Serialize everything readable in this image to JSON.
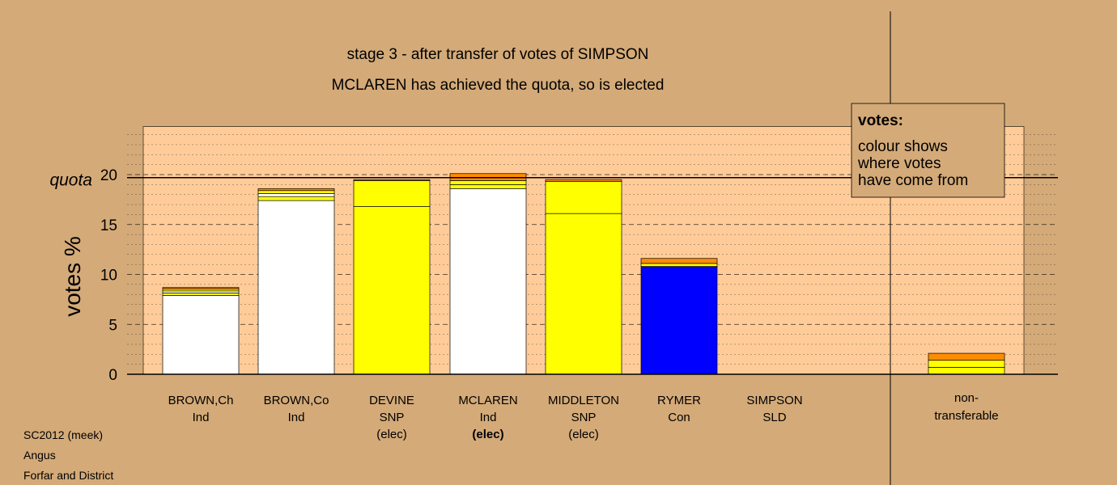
{
  "chart_data": {
    "type": "bar",
    "stacked": true,
    "title": "stage 3 - after transfer of votes of SIMPSON",
    "subtitle": "MCLAREN has achieved the quota, so is elected",
    "ylabel": "votes %",
    "ylim": [
      0,
      24
    ],
    "yticks": [
      0,
      5,
      10,
      15,
      20
    ],
    "quota": {
      "label": "quota",
      "value": 19.7
    },
    "grid": true,
    "categories": [
      {
        "name": "BROWN,Ch",
        "party": "Ind",
        "status": "",
        "bold": false
      },
      {
        "name": "BROWN,Co",
        "party": "Ind",
        "status": "",
        "bold": false
      },
      {
        "name": "DEVINE",
        "party": "SNP",
        "status": "(elec)",
        "bold": false
      },
      {
        "name": "MCLAREN",
        "party": "Ind",
        "status": "(elec)",
        "bold": true
      },
      {
        "name": "MIDDLETON",
        "party": "SNP",
        "status": "(elec)",
        "bold": false
      },
      {
        "name": "RYMER",
        "party": "Con",
        "status": "",
        "bold": false
      },
      {
        "name": "SIMPSON",
        "party": "SLD",
        "status": "",
        "bold": false
      }
    ],
    "bars": [
      {
        "segments": [
          {
            "value": 7.9,
            "color": "#ffffff"
          },
          {
            "value": 0.25,
            "color": "#ffff00"
          },
          {
            "value": 0.2,
            "color": "#ffffff"
          },
          {
            "value": 0.2,
            "color": "#ffff00"
          },
          {
            "value": 0.15,
            "color": "#ff8c00"
          }
        ]
      },
      {
        "segments": [
          {
            "value": 17.4,
            "color": "#ffffff"
          },
          {
            "value": 0.4,
            "color": "#ffff00"
          },
          {
            "value": 0.3,
            "color": "#ffffff"
          },
          {
            "value": 0.3,
            "color": "#ffff00"
          },
          {
            "value": 0.2,
            "color": "#ff8c00"
          }
        ]
      },
      {
        "segments": [
          {
            "value": 16.8,
            "color": "#ffff00"
          },
          {
            "value": 2.6,
            "color": "#ffff00"
          },
          {
            "value": 0.1,
            "color": "#ff8c00"
          }
        ]
      },
      {
        "segments": [
          {
            "value": 18.6,
            "color": "#ffffff"
          },
          {
            "value": 0.4,
            "color": "#ffff00"
          },
          {
            "value": 0.4,
            "color": "#ffff00"
          },
          {
            "value": 0.7,
            "color": "#ff8c00"
          }
        ]
      },
      {
        "segments": [
          {
            "value": 16.1,
            "color": "#ffff00"
          },
          {
            "value": 3.2,
            "color": "#ffff00"
          },
          {
            "value": 0.2,
            "color": "#ff8c00"
          }
        ]
      },
      {
        "segments": [
          {
            "value": 10.8,
            "color": "#0000ff"
          },
          {
            "value": 0.3,
            "color": "#ffff00"
          },
          {
            "value": 0.5,
            "color": "#ff8c00"
          }
        ]
      },
      {
        "segments": []
      }
    ],
    "nontransferable": {
      "label_line1": "non-",
      "label_line2": "transferable",
      "segments": [
        {
          "value": 0.7,
          "color": "#ffff00"
        },
        {
          "value": 0.7,
          "color": "#ffff00"
        },
        {
          "value": 0.7,
          "color": "#ff8c00"
        }
      ]
    },
    "legend": {
      "placement": "top-right",
      "title": "votes:",
      "lines": [
        "colour shows",
        "where votes",
        "have come from"
      ]
    }
  },
  "footer": {
    "line1": "SC2012 (meek)",
    "line2": "Angus",
    "line3": "Forfar and District"
  },
  "colors": {
    "background": "#d4aa78",
    "plot_area": "#ffcc99"
  }
}
